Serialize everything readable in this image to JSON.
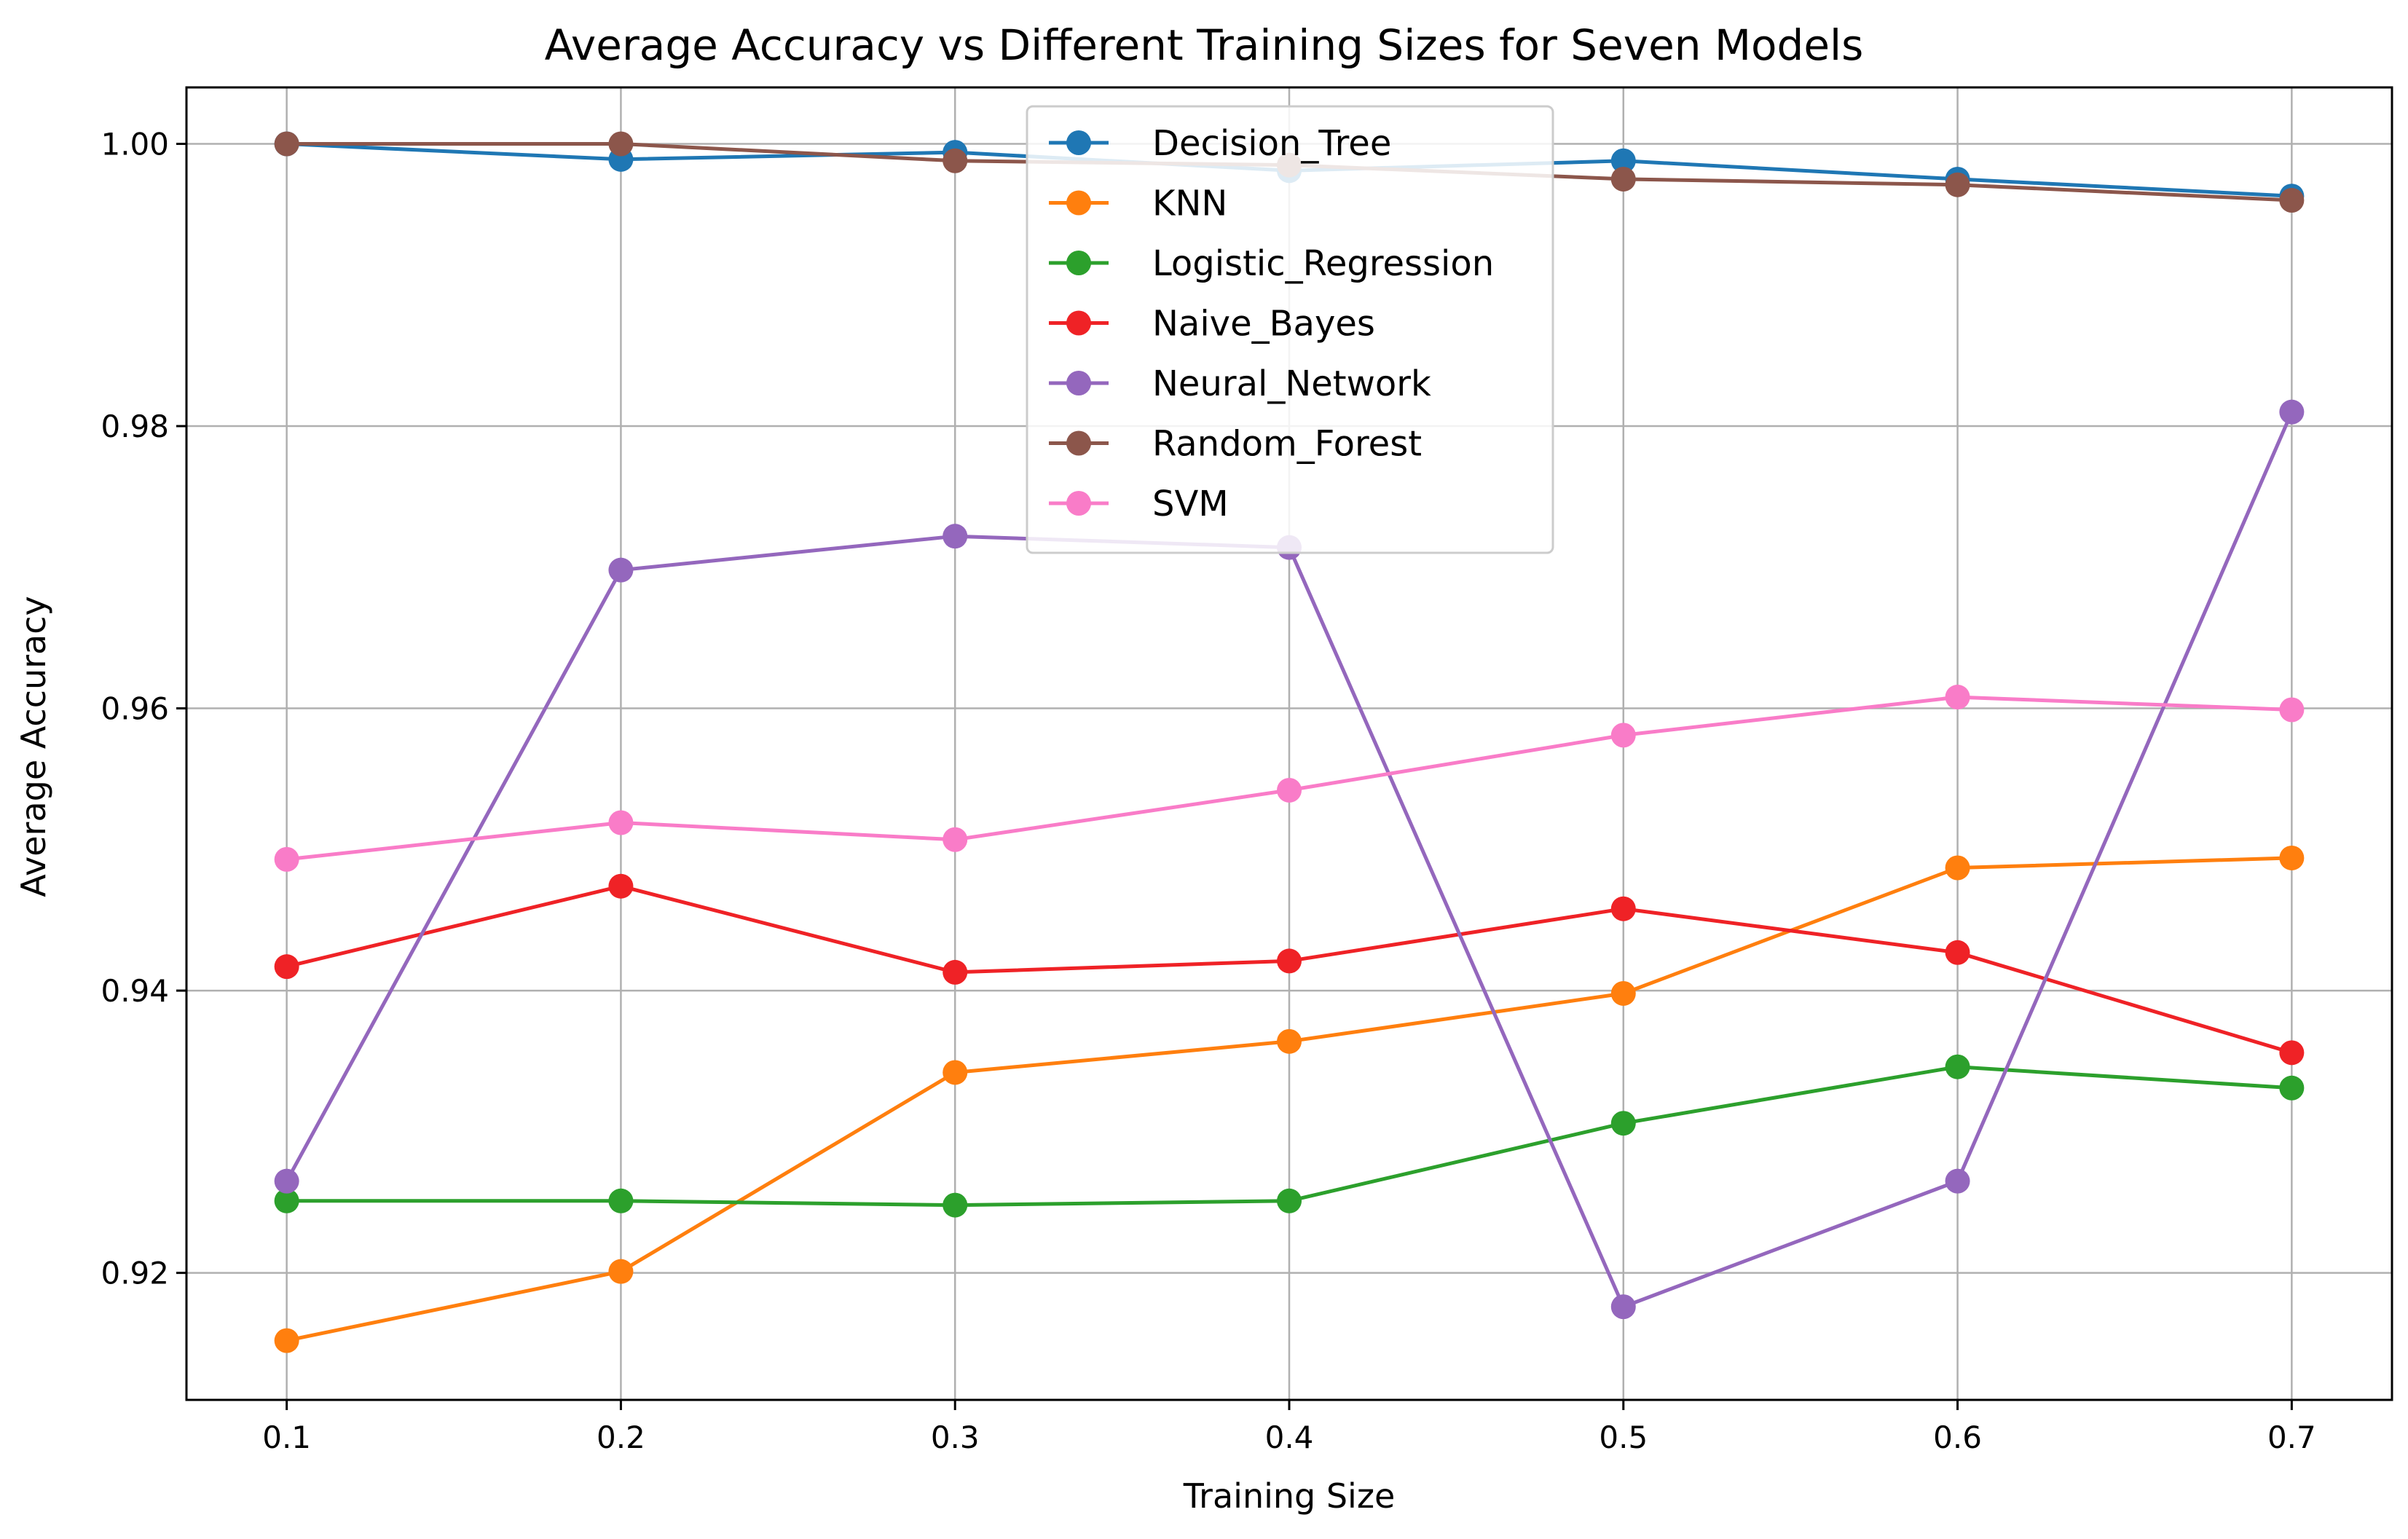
{
  "chart_data": {
    "type": "line",
    "title": "Average Accuracy vs Different Training Sizes for Seven Models",
    "xlabel": "Training Size",
    "ylabel": "Average Accuracy",
    "x": [
      0.1,
      0.2,
      0.3,
      0.4,
      0.5,
      0.6,
      0.7
    ],
    "x_tick_labels": [
      "0.1",
      "0.2",
      "0.3",
      "0.4",
      "0.5",
      "0.6",
      "0.7"
    ],
    "y_ticks": [
      0.92,
      0.94,
      0.96,
      0.98,
      1.0
    ],
    "y_tick_labels": [
      "0.92",
      "0.94",
      "0.96",
      "0.98",
      "1.00"
    ],
    "xlim": [
      0.07,
      0.73
    ],
    "ylim": [
      0.911,
      1.004
    ],
    "grid": true,
    "legend_position": "top-center",
    "series": [
      {
        "name": "Decision_Tree",
        "color": "#1f77b4",
        "values": [
          1.0,
          0.9989,
          0.9994,
          0.9981,
          0.9988,
          0.9975,
          0.9963
        ]
      },
      {
        "name": "KNN",
        "color": "#ff7f0e",
        "values": [
          0.9152,
          0.9201,
          0.9342,
          0.9364,
          0.9398,
          0.9487,
          0.9494
        ]
      },
      {
        "name": "Logistic_Regression",
        "color": "#2ca02c",
        "values": [
          0.9251,
          0.9251,
          0.9248,
          0.9251,
          0.9306,
          0.9346,
          0.9331
        ]
      },
      {
        "name": "Naive_Bayes",
        "color": "#ef2226",
        "values": [
          0.9417,
          0.9474,
          0.9413,
          0.9421,
          0.9458,
          0.9427,
          0.9356
        ]
      },
      {
        "name": "Neural_Network",
        "color": "#9467bd",
        "values": [
          0.9265,
          0.9698,
          0.9722,
          0.9714,
          0.9176,
          0.9265,
          0.981
        ]
      },
      {
        "name": "Random_Forest",
        "color": "#8c564b",
        "values": [
          1.0,
          1.0,
          0.9988,
          0.9985,
          0.9975,
          0.9971,
          0.996
        ]
      },
      {
        "name": "SVM",
        "color": "#f97cc8",
        "values": [
          0.9493,
          0.9519,
          0.9507,
          0.9542,
          0.9581,
          0.9608,
          0.9599
        ]
      }
    ]
  }
}
